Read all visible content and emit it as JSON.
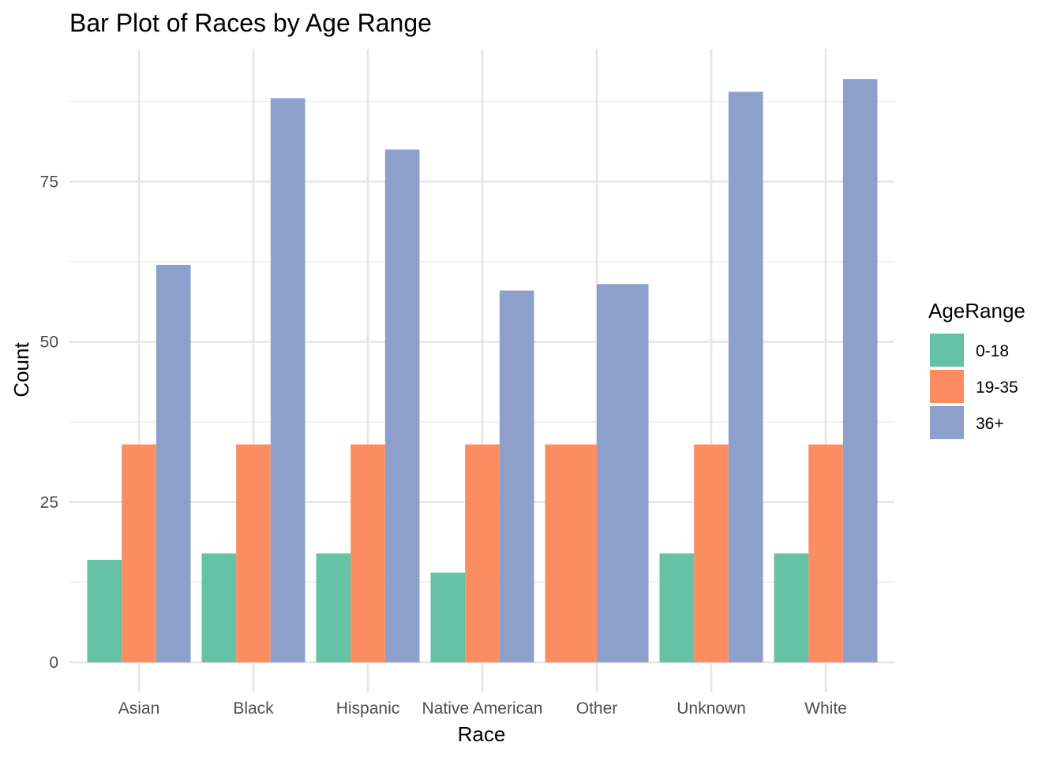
{
  "chart_data": {
    "type": "bar",
    "title": "Bar Plot of Races by Age Range",
    "xlabel": "Race",
    "ylabel": "Count",
    "ylim": [
      0,
      95.7
    ],
    "y_ticks": [
      0,
      25,
      50,
      75
    ],
    "grid": true,
    "legend_position": "right",
    "legend_title": "AgeRange",
    "categories": [
      "Asian",
      "Black",
      "Hispanic",
      "Native American",
      "Other",
      "Unknown",
      "White"
    ],
    "series": [
      {
        "name": "0-18",
        "color": "#66C2A5",
        "values": [
          16,
          17,
          17,
          14,
          null,
          17,
          17
        ]
      },
      {
        "name": "19-35",
        "color": "#FC8D62",
        "values": [
          34,
          34,
          34,
          34,
          34,
          34,
          34
        ]
      },
      {
        "name": "36+",
        "color": "#8DA0CB",
        "values": [
          62,
          88,
          80,
          58,
          59,
          89,
          91
        ]
      }
    ]
  }
}
